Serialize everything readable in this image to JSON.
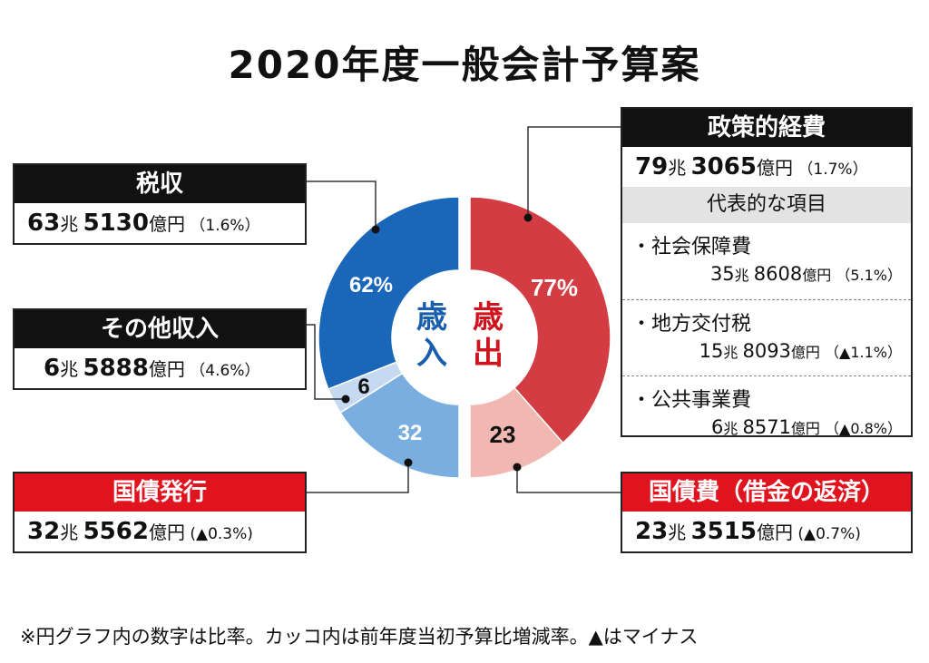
{
  "title": "2020年度一般会計予算案",
  "chart_data": {
    "type": "pie",
    "title": "2020年度一般会計予算案",
    "charts": [
      {
        "center_label": "歳入",
        "slices": [
          {
            "label": "税収",
            "value": 62,
            "display": "62%"
          },
          {
            "label": "その他収入",
            "value": 6,
            "display": "6"
          },
          {
            "label": "国債発行",
            "value": 32,
            "display": "32"
          }
        ]
      },
      {
        "center_label": "歳出",
        "slices": [
          {
            "label": "政策的経費",
            "value": 77,
            "display": "77%"
          },
          {
            "label": "国債費（借金の返済）",
            "value": 23,
            "display": "23"
          }
        ]
      }
    ],
    "colors": {
      "revenue_tax": "#1a66b8",
      "revenue_other": "#c5d9f0",
      "revenue_bonds": "#7aaee0",
      "spending_policy": "#d43c43",
      "spending_debt": "#f0b8b0",
      "revenue_text": "#1a5fae",
      "spending_text": "#d0141e"
    }
  },
  "revenue": {
    "tax": {
      "label": "税収",
      "amount_cho": "63",
      "cho": "兆",
      "amount_oku": "5130",
      "yen": "億円",
      "change": "（1.6%）"
    },
    "other": {
      "label": "その他収入",
      "amount_cho": "6",
      "cho": "兆",
      "amount_oku": "5888",
      "yen": "億円",
      "change": "（4.6%）"
    },
    "bonds": {
      "label": "国債発行",
      "amount_cho": "32",
      "cho": "兆",
      "amount_oku": "5562",
      "yen": "億円",
      "change": "(▲0.3%)"
    }
  },
  "spending": {
    "policy": {
      "label": "政策的経費",
      "amount_cho": "79",
      "cho": "兆",
      "amount_oku": "3065",
      "yen": "億円",
      "change": "（1.7%）"
    },
    "items_header": "代表的な項目",
    "items": [
      {
        "name": "・社会保障費",
        "cho_num": "35",
        "cho": "兆",
        "oku_num": "8608",
        "yen": "億円",
        "change": "（5.1%）"
      },
      {
        "name": "・地方交付税",
        "cho_num": "15",
        "cho": "兆",
        "oku_num": "8093",
        "yen": "億円",
        "change": "（▲1.1%）"
      },
      {
        "name": "・公共事業費",
        "cho_num": "6",
        "cho": "兆",
        "oku_num": "8571",
        "yen": "億円",
        "change": "（▲0.8%）"
      }
    ],
    "debt": {
      "label": "国債費（借金の返済）",
      "amount_cho": "23",
      "cho": "兆",
      "amount_oku": "3515",
      "yen": "億円",
      "change": "(▲0.7%)"
    }
  },
  "footnote": "※円グラフ内の数字は比率。カッコ内は前年度当初予算比増減率。▲はマイナス"
}
